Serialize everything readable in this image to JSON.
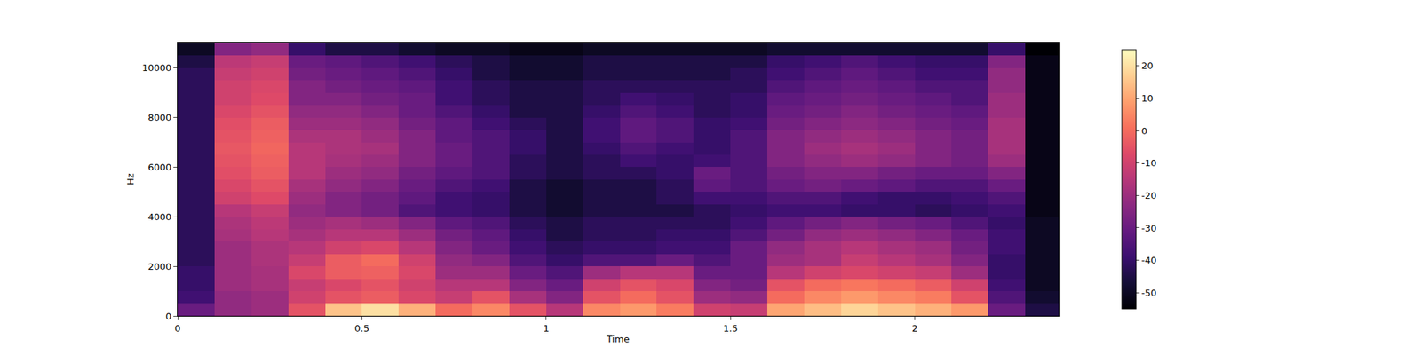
{
  "chart_data": {
    "type": "heatmap",
    "x_label": "Time",
    "y_label": "Hz",
    "xlim": [
      0,
      2.39
    ],
    "xticks": [
      0,
      0.5,
      1,
      1.5,
      2
    ],
    "ylim": [
      0,
      11025
    ],
    "yticks": [
      0,
      2000,
      4000,
      6000,
      8000,
      10000
    ],
    "x": [
      0.05,
      0.15,
      0.25,
      0.35,
      0.45,
      0.55,
      0.65,
      0.75,
      0.85,
      0.95,
      1.05,
      1.15,
      1.25,
      1.35,
      1.45,
      1.55,
      1.65,
      1.75,
      1.85,
      1.95,
      2.05,
      2.15,
      2.25,
      2.35
    ],
    "y": [
      250,
      750,
      1250,
      1750,
      2250,
      2750,
      3250,
      3750,
      4250,
      4750,
      5250,
      5750,
      6250,
      6750,
      7250,
      7750,
      8250,
      8750,
      9250,
      9750,
      10250,
      10750
    ],
    "z": [
      [
        -30,
        -22,
        -20,
        -5,
        15,
        20,
        12,
        0,
        5,
        -5,
        -15,
        5,
        8,
        3,
        -10,
        -12,
        10,
        14,
        18,
        15,
        12,
        8,
        -30,
        -45
      ],
      [
        -38,
        -22,
        -20,
        -10,
        -5,
        -3,
        -8,
        -12,
        -5,
        -18,
        -25,
        -5,
        0,
        -5,
        -20,
        -22,
        0,
        5,
        8,
        5,
        3,
        -5,
        -35,
        -48
      ],
      [
        -40,
        -20,
        -18,
        -12,
        -8,
        -5,
        -10,
        -15,
        -15,
        -25,
        -30,
        -10,
        -5,
        -8,
        -25,
        -28,
        -5,
        0,
        2,
        0,
        -3,
        -10,
        -38,
        -50
      ],
      [
        -40,
        -20,
        -18,
        -8,
        -3,
        -2,
        -8,
        -20,
        -20,
        -30,
        -35,
        -20,
        -15,
        -15,
        -30,
        -30,
        -15,
        -10,
        -8,
        -10,
        -12,
        -20,
        -40,
        -50
      ],
      [
        -42,
        -20,
        -17,
        -12,
        -3,
        0,
        -10,
        -22,
        -25,
        -35,
        -40,
        -35,
        -35,
        -30,
        -35,
        -30,
        -20,
        -18,
        -12,
        -15,
        -18,
        -25,
        -40,
        -50
      ],
      [
        -42,
        -20,
        -17,
        -15,
        -10,
        -8,
        -15,
        -25,
        -30,
        -38,
        -42,
        -40,
        -40,
        -38,
        -38,
        -30,
        -22,
        -18,
        -15,
        -18,
        -20,
        -28,
        -38,
        -50
      ],
      [
        -42,
        -18,
        -15,
        -18,
        -15,
        -15,
        -20,
        -28,
        -32,
        -40,
        -45,
        -42,
        -42,
        -40,
        -40,
        -35,
        -28,
        -22,
        -20,
        -22,
        -25,
        -30,
        -38,
        -50
      ],
      [
        -42,
        -17,
        -14,
        -20,
        -18,
        -20,
        -25,
        -32,
        -35,
        -42,
        -45,
        -42,
        -42,
        -42,
        -42,
        -38,
        -32,
        -28,
        -25,
        -28,
        -30,
        -35,
        -40,
        -50
      ],
      [
        -42,
        -15,
        -12,
        -22,
        -25,
        -28,
        -35,
        -38,
        -40,
        -45,
        -48,
        -45,
        -45,
        -45,
        -42,
        -40,
        -38,
        -38,
        -40,
        -40,
        -42,
        -40,
        -38,
        -52
      ],
      [
        -42,
        -10,
        -7,
        -20,
        -25,
        -28,
        -32,
        -38,
        -40,
        -45,
        -48,
        -45,
        -45,
        -42,
        -38,
        -38,
        -35,
        -35,
        -38,
        -40,
        -40,
        -38,
        -35,
        -52
      ],
      [
        -42,
        -8,
        -5,
        -18,
        -22,
        -25,
        -30,
        -35,
        -38,
        -45,
        -48,
        -45,
        -45,
        -42,
        -32,
        -35,
        -30,
        -28,
        -30,
        -32,
        -35,
        -35,
        -30,
        -52
      ],
      [
        -42,
        -6,
        -3,
        -15,
        -20,
        -22,
        -28,
        -32,
        -35,
        -42,
        -45,
        -42,
        -42,
        -40,
        -30,
        -35,
        -28,
        -25,
        -25,
        -28,
        -30,
        -30,
        -25,
        -52
      ],
      [
        -42,
        -5,
        -2,
        -15,
        -18,
        -20,
        -25,
        -30,
        -35,
        -42,
        -45,
        -42,
        -38,
        -40,
        -38,
        -35,
        -25,
        -22,
        -20,
        -22,
        -25,
        -28,
        -20,
        -52
      ],
      [
        -42,
        -4,
        -1,
        -15,
        -17,
        -18,
        -25,
        -30,
        -35,
        -40,
        -45,
        -40,
        -35,
        -38,
        -40,
        -35,
        -25,
        -20,
        -18,
        -20,
        -25,
        -28,
        -18,
        -52
      ],
      [
        -42,
        -5,
        -2,
        -17,
        -17,
        -20,
        -25,
        -32,
        -35,
        -40,
        -45,
        -38,
        -32,
        -35,
        -40,
        -35,
        -25,
        -22,
        -20,
        -22,
        -25,
        -28,
        -18,
        -52
      ],
      [
        -42,
        -6,
        -3,
        -20,
        -20,
        -22,
        -28,
        -32,
        -38,
        -42,
        -45,
        -38,
        -32,
        -35,
        -40,
        -38,
        -28,
        -25,
        -23,
        -25,
        -28,
        -30,
        -18,
        -52
      ],
      [
        -42,
        -8,
        -5,
        -22,
        -22,
        -25,
        -30,
        -35,
        -40,
        -45,
        -45,
        -40,
        -35,
        -38,
        -42,
        -40,
        -30,
        -28,
        -25,
        -28,
        -30,
        -32,
        -20,
        -52
      ],
      [
        -42,
        -10,
        -7,
        -25,
        -25,
        -28,
        -30,
        -38,
        -42,
        -45,
        -45,
        -42,
        -38,
        -40,
        -42,
        -40,
        -32,
        -30,
        -28,
        -30,
        -32,
        -35,
        -20,
        -52
      ],
      [
        -42,
        -10,
        -8,
        -25,
        -28,
        -30,
        -32,
        -38,
        -42,
        -45,
        -45,
        -42,
        -42,
        -42,
        -42,
        -42,
        -35,
        -32,
        -30,
        -32,
        -35,
        -35,
        -22,
        -52
      ],
      [
        -42,
        -12,
        -10,
        -28,
        -30,
        -32,
        -35,
        -40,
        -45,
        -48,
        -48,
        -45,
        -45,
        -45,
        -45,
        -42,
        -38,
        -35,
        -32,
        -35,
        -38,
        -38,
        -22,
        -52
      ],
      [
        -45,
        -14,
        -12,
        -30,
        -32,
        -35,
        -38,
        -42,
        -45,
        -48,
        -48,
        -45,
        -45,
        -45,
        -45,
        -45,
        -40,
        -38,
        -35,
        -38,
        -40,
        -40,
        -25,
        -52
      ],
      [
        -50,
        -25,
        -22,
        -40,
        -45,
        -45,
        -48,
        -50,
        -50,
        -52,
        -52,
        -50,
        -50,
        -50,
        -50,
        -50,
        -48,
        -48,
        -48,
        -48,
        -48,
        -48,
        -40,
        -55
      ]
    ],
    "colorbar": {
      "range": [
        -55,
        25
      ],
      "ticks": [
        -50,
        -40,
        -30,
        -20,
        -10,
        0,
        10,
        20
      ]
    }
  }
}
